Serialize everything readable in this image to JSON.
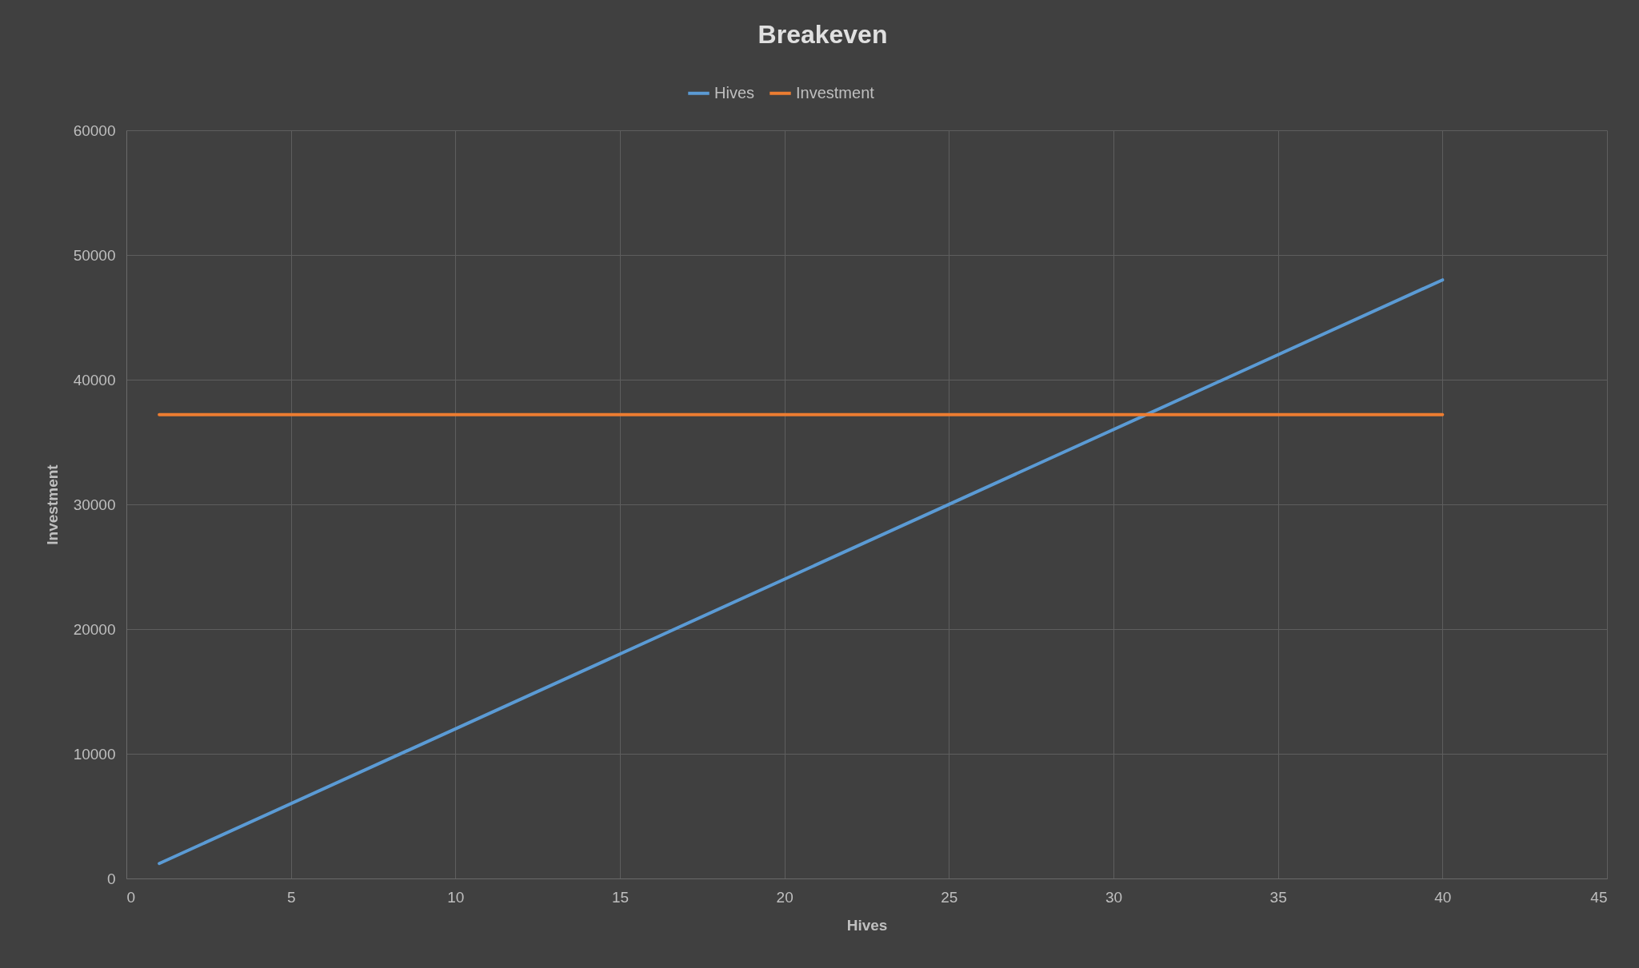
{
  "chart_data": {
    "type": "line",
    "title": "Breakeven",
    "xlabel": "Hives",
    "ylabel": "Investment",
    "x": [
      1,
      40
    ],
    "series": [
      {
        "name": "Hives",
        "color": "#5b9bd5",
        "values": [
          1200,
          48000
        ]
      },
      {
        "name": "Investment",
        "color": "#ed7d31",
        "values": [
          37200,
          37200
        ]
      }
    ],
    "xlim": [
      0,
      45
    ],
    "xticks": [
      0,
      5,
      10,
      15,
      20,
      25,
      30,
      35,
      40,
      45
    ],
    "ylim": [
      0,
      60000
    ],
    "yticks": [
      0,
      10000,
      20000,
      30000,
      40000,
      50000,
      60000
    ],
    "grid": true,
    "legend": "top",
    "marker": "none",
    "line_style": "solid"
  }
}
